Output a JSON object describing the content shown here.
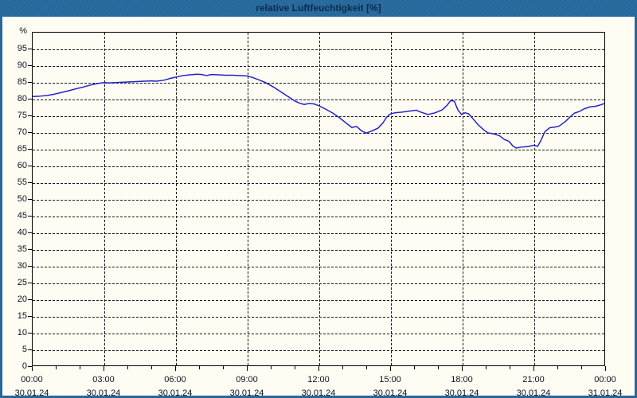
{
  "window": {
    "title": "relative Luftfeuchtigkeit [%]"
  },
  "ui_colors": {
    "titlebar_bg": "#26689c",
    "titlebar_text": "#0b2b4e",
    "frame": "#26689c",
    "content_bg": "#fffdf3",
    "grid": "#1a1a1a",
    "label_text": "#0c1220"
  },
  "chart_data": {
    "type": "line",
    "title": "relative Luftfeuchtigkeit [%]",
    "xlabel": "",
    "ylabel": "%",
    "ylim": [
      0,
      100
    ],
    "y_tick_step": 5,
    "y_tick_min": 0,
    "y_tick_max": 95,
    "xlim_hours": [
      0,
      24
    ],
    "x_minor_tick_every_hours": 1,
    "grid": "dashed",
    "legend": "none",
    "line_color": "#2222c8",
    "x_major_ticks": [
      {
        "hour": 0,
        "time": "00:00",
        "date": "30.01.24"
      },
      {
        "hour": 3,
        "time": "03:00",
        "date": "30.01.24"
      },
      {
        "hour": 6,
        "time": "06:00",
        "date": "30.01.24"
      },
      {
        "hour": 9,
        "time": "09:00",
        "date": "30.01.24"
      },
      {
        "hour": 12,
        "time": "12:00",
        "date": "30.01.24"
      },
      {
        "hour": 15,
        "time": "15:00",
        "date": "30.01.24"
      },
      {
        "hour": 18,
        "time": "18:00",
        "date": "30.01.24"
      },
      {
        "hour": 21,
        "time": "21:00",
        "date": "30.01.24"
      },
      {
        "hour": 24,
        "time": "00:00",
        "date": "31.01.24"
      }
    ],
    "series": [
      {
        "name": "relative Luftfeuchtigkeit",
        "points": [
          [
            0,
            80.8
          ],
          [
            0.3,
            80.9
          ],
          [
            0.6,
            81.1
          ],
          [
            0.9,
            81.5
          ],
          [
            1.2,
            82.0
          ],
          [
            1.5,
            82.5
          ],
          [
            1.8,
            83.1
          ],
          [
            2.1,
            83.6
          ],
          [
            2.4,
            84.2
          ],
          [
            2.7,
            84.7
          ],
          [
            3,
            85.0
          ],
          [
            3.2,
            84.9
          ],
          [
            3.5,
            85.0
          ],
          [
            3.8,
            85.1
          ],
          [
            4.1,
            85.2
          ],
          [
            4.4,
            85.3
          ],
          [
            4.7,
            85.4
          ],
          [
            5,
            85.5
          ],
          [
            5.2,
            85.4
          ],
          [
            5.5,
            85.7
          ],
          [
            5.8,
            86.3
          ],
          [
            6,
            86.6
          ],
          [
            6.3,
            87.1
          ],
          [
            6.6,
            87.3
          ],
          [
            6.9,
            87.5
          ],
          [
            7.1,
            87.4
          ],
          [
            7.3,
            87.1
          ],
          [
            7.5,
            87.4
          ],
          [
            7.8,
            87.3
          ],
          [
            8.1,
            87.2
          ],
          [
            8.4,
            87.2
          ],
          [
            8.7,
            87.1
          ],
          [
            9,
            87.0
          ],
          [
            9.2,
            86.6
          ],
          [
            9.5,
            85.8
          ],
          [
            9.8,
            84.9
          ],
          [
            10.1,
            83.7
          ],
          [
            10.4,
            82.3
          ],
          [
            10.7,
            80.9
          ],
          [
            11,
            79.5
          ],
          [
            11.2,
            78.8
          ],
          [
            11.4,
            78.4
          ],
          [
            11.6,
            78.7
          ],
          [
            11.8,
            78.6
          ],
          [
            12,
            78.1
          ],
          [
            12.3,
            77.0
          ],
          [
            12.6,
            75.8
          ],
          [
            12.9,
            74.3
          ],
          [
            13.2,
            72.6
          ],
          [
            13.4,
            71.5
          ],
          [
            13.6,
            71.8
          ],
          [
            13.8,
            70.5
          ],
          [
            14,
            69.8
          ],
          [
            14.2,
            70.3
          ],
          [
            14.5,
            71.3
          ],
          [
            14.7,
            72.8
          ],
          [
            14.85,
            74.5
          ],
          [
            15,
            75.5
          ],
          [
            15.2,
            75.9
          ],
          [
            15.5,
            76.1
          ],
          [
            15.8,
            76.4
          ],
          [
            16.1,
            76.7
          ],
          [
            16.3,
            76.1
          ],
          [
            16.6,
            75.4
          ],
          [
            16.9,
            75.9
          ],
          [
            17.2,
            76.8
          ],
          [
            17.4,
            78.2
          ],
          [
            17.55,
            79.6
          ],
          [
            17.7,
            79.4
          ],
          [
            17.85,
            76.8
          ],
          [
            18,
            75.4
          ],
          [
            18.15,
            75.9
          ],
          [
            18.3,
            75.6
          ],
          [
            18.5,
            74.0
          ],
          [
            18.7,
            72.3
          ],
          [
            18.9,
            71.0
          ],
          [
            19.1,
            69.9
          ],
          [
            19.4,
            69.5
          ],
          [
            19.6,
            69.0
          ],
          [
            19.8,
            67.9
          ],
          [
            20,
            67.3
          ],
          [
            20.15,
            66.0
          ],
          [
            20.3,
            65.3
          ],
          [
            20.5,
            65.6
          ],
          [
            20.7,
            65.7
          ],
          [
            20.9,
            65.9
          ],
          [
            21.05,
            66.2
          ],
          [
            21.2,
            65.8
          ],
          [
            21.35,
            67.8
          ],
          [
            21.5,
            70.2
          ],
          [
            21.7,
            71.4
          ],
          [
            21.9,
            71.6
          ],
          [
            22.1,
            71.9
          ],
          [
            22.35,
            73.2
          ],
          [
            22.55,
            74.6
          ],
          [
            22.75,
            75.8
          ],
          [
            22.95,
            76.3
          ],
          [
            23.15,
            77.1
          ],
          [
            23.4,
            77.7
          ],
          [
            23.65,
            77.9
          ],
          [
            23.85,
            78.3
          ],
          [
            24,
            78.7
          ]
        ]
      }
    ]
  }
}
